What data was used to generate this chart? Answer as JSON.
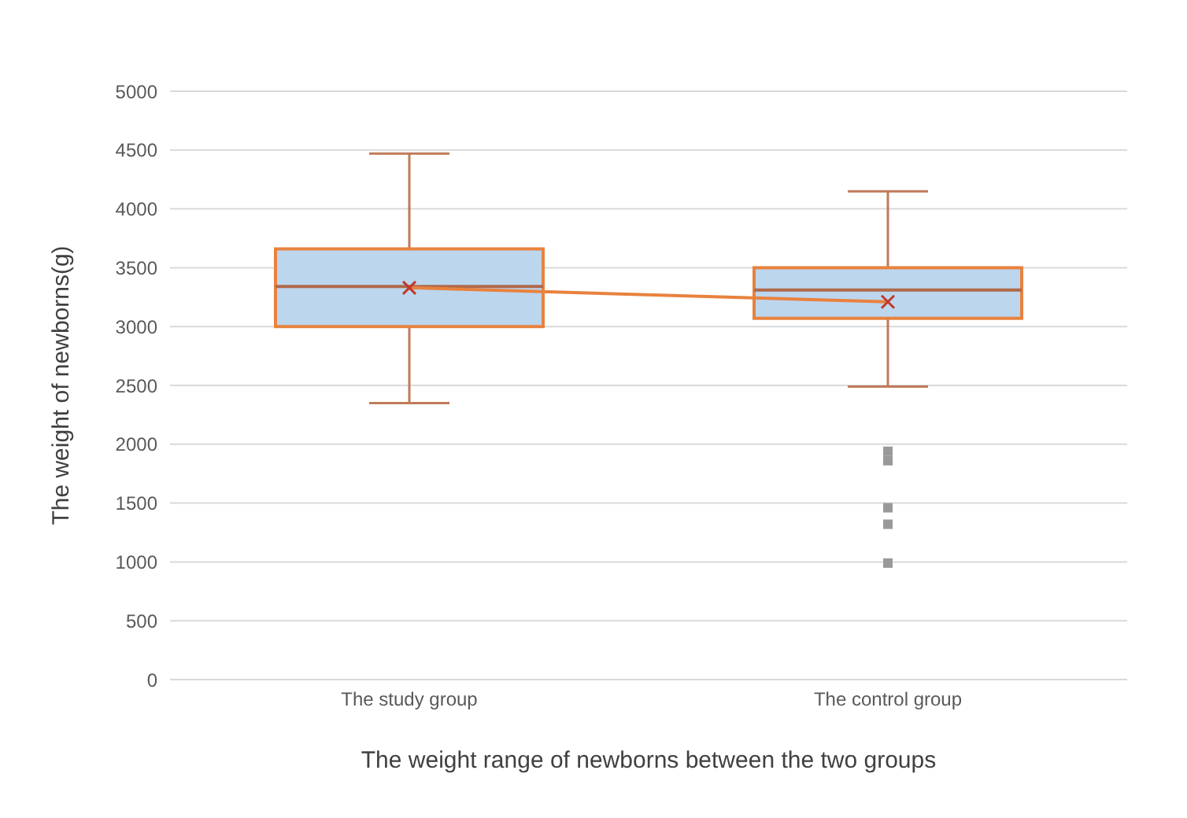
{
  "chart_data": {
    "type": "box",
    "xlabel": "The weight range of newborns between the two groups",
    "ylabel": "The weight of newborns(g)",
    "categories": [
      "The study group",
      "The control group"
    ],
    "boxes": [
      {
        "low": 2350,
        "q1": 3000,
        "median": 3340,
        "q3": 3660,
        "high": 4470,
        "mean": 3330
      },
      {
        "low": 2490,
        "q1": 3070,
        "median": 3310,
        "q3": 3500,
        "high": 4150,
        "mean": 3210,
        "outliers": [
          1940,
          1860,
          1460,
          1320,
          990
        ]
      }
    ],
    "color": "#e8823e",
    "series": [
      {
        "type": "line",
        "color": "#e8823e",
        "values": [
          3330,
          3210
        ]
      }
    ],
    "ylim": [
      0,
      5000
    ],
    "yticks": [
      0,
      500,
      1000,
      1500,
      2000,
      2500,
      3000,
      3500,
      4000,
      4500,
      5000
    ],
    "grid": "y"
  }
}
